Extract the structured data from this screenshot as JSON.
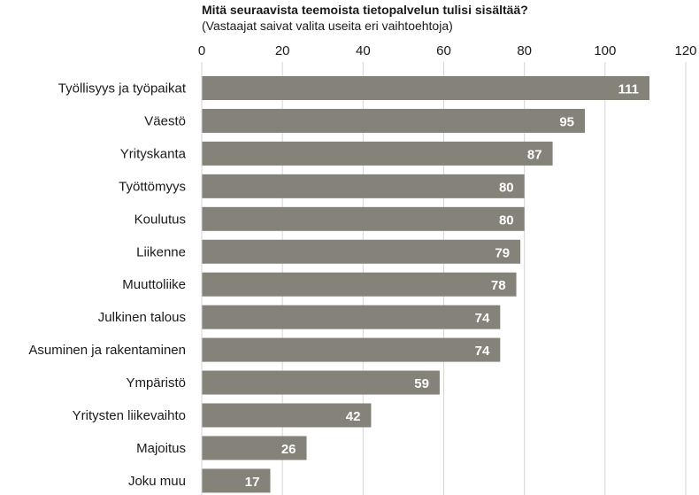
{
  "chart_data": {
    "type": "bar",
    "orientation": "horizontal",
    "title": "Mitä seuraavista teemoista tietopalvelun tulisi sisältää?",
    "subtitle": "(Vastaajat saivat valita useita eri vaihtoehtoja)",
    "categories": [
      "Työllisyys ja työpaikat",
      "Väestö",
      "Yrityskanta",
      "Työttömyys",
      "Koulutus",
      "Liikenne",
      "Muuttoliike",
      "Julkinen talous",
      "Asuminen ja rakentaminen",
      "Ympäristö",
      "Yritysten liikevaihto",
      "Majoitus",
      "Joku muu"
    ],
    "values": [
      111,
      95,
      87,
      80,
      80,
      79,
      78,
      74,
      74,
      59,
      42,
      26,
      17
    ],
    "xlim": [
      0,
      120
    ],
    "xticks": [
      0,
      20,
      40,
      60,
      80,
      100,
      120
    ],
    "x_axis_position": "top",
    "grid": true,
    "data_labels": true,
    "colors": {
      "bar": "#858279",
      "label": "#ffffff",
      "grid": "#d6d6d6",
      "text": "#1a1a1a"
    }
  }
}
